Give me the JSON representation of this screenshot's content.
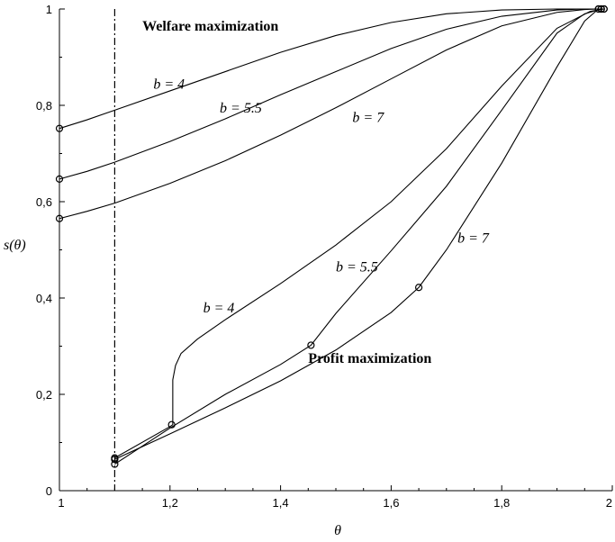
{
  "chart_data": {
    "type": "line",
    "title": "",
    "xlabel": "θ",
    "ylabel": "s(θ)",
    "xlim": [
      1,
      2
    ],
    "ylim": [
      0,
      1
    ],
    "x_ticks": [
      1,
      1.2,
      1.4,
      1.6,
      1.8,
      2
    ],
    "x_tick_labels": [
      "1",
      "1,2",
      "1,4",
      "1,6",
      "1,8",
      "2"
    ],
    "y_ticks": [
      0,
      0.2,
      0.4,
      0.6,
      0.8,
      1
    ],
    "y_tick_labels": [
      "0",
      "0,2",
      "0,4",
      "0,6",
      "0,8",
      "1"
    ],
    "grid": false,
    "vertical_line": {
      "x": 1.1,
      "style": "dash-dot"
    },
    "annotations": [
      {
        "text": "Welfare maximization",
        "x": 1.15,
        "y": 0.955,
        "style": "bold"
      },
      {
        "text": "Profit maximization",
        "x": 1.45,
        "y": 0.265,
        "style": "bold"
      },
      {
        "text": "b = 4",
        "x": 1.17,
        "y": 0.835,
        "style": "math"
      },
      {
        "text": "b = 5.5",
        "x": 1.29,
        "y": 0.785,
        "style": "math"
      },
      {
        "text": "b = 7",
        "x": 1.53,
        "y": 0.765,
        "style": "math"
      },
      {
        "text": "b = 4",
        "x": 1.26,
        "y": 0.37,
        "style": "math"
      },
      {
        "text": "b = 5.5",
        "x": 1.5,
        "y": 0.455,
        "style": "math"
      },
      {
        "text": "b = 7",
        "x": 1.72,
        "y": 0.515,
        "style": "math"
      }
    ],
    "series": [
      {
        "group": "welfare",
        "label": "b = 4",
        "x": [
          1,
          1.05,
          1.1,
          1.2,
          1.3,
          1.4,
          1.5,
          1.6,
          1.7,
          1.8,
          1.9,
          1.97,
          1.985
        ],
        "y": [
          0.752,
          0.77,
          0.79,
          0.83,
          0.87,
          0.91,
          0.945,
          0.972,
          0.99,
          0.998,
          1,
          1,
          1
        ],
        "markers": [
          [
            1,
            0.752
          ],
          [
            1.985,
            1
          ]
        ]
      },
      {
        "group": "welfare",
        "label": "b = 5.5",
        "x": [
          1,
          1.05,
          1.1,
          1.2,
          1.3,
          1.4,
          1.5,
          1.6,
          1.7,
          1.8,
          1.9,
          1.95,
          1.98
        ],
        "y": [
          0.647,
          0.663,
          0.682,
          0.725,
          0.772,
          0.822,
          0.87,
          0.918,
          0.958,
          0.985,
          0.998,
          1,
          1
        ],
        "markers": [
          [
            1,
            0.647
          ],
          [
            1.98,
            1
          ]
        ]
      },
      {
        "group": "welfare",
        "label": "b = 7",
        "x": [
          1,
          1.05,
          1.1,
          1.2,
          1.3,
          1.4,
          1.5,
          1.6,
          1.7,
          1.8,
          1.9,
          1.95,
          1.975
        ],
        "y": [
          0.565,
          0.58,
          0.597,
          0.638,
          0.685,
          0.738,
          0.795,
          0.855,
          0.915,
          0.965,
          0.993,
          0.999,
          1
        ],
        "markers": [
          [
            1,
            0.565
          ],
          [
            1.975,
            1
          ]
        ]
      },
      {
        "group": "profit",
        "label": "b = 4",
        "x": [
          1.1,
          1.2,
          1.205,
          1.205,
          1.21,
          1.22,
          1.25,
          1.3,
          1.4,
          1.5,
          1.6,
          1.7,
          1.8,
          1.9,
          1.96,
          1.985
        ],
        "y": [
          0.068,
          0.133,
          0.137,
          0.23,
          0.26,
          0.285,
          0.315,
          0.355,
          0.43,
          0.51,
          0.6,
          0.71,
          0.84,
          0.96,
          0.995,
          1
        ],
        "markers": [
          [
            1.1,
            0.068
          ],
          [
            1.203,
            0.137
          ],
          [
            1.985,
            1
          ]
        ]
      },
      {
        "group": "profit",
        "label": "b = 5.5",
        "x": [
          1.1,
          1.2,
          1.3,
          1.4,
          1.455,
          1.5,
          1.6,
          1.7,
          1.8,
          1.9,
          1.95,
          1.98
        ],
        "y": [
          0.055,
          0.13,
          0.2,
          0.262,
          0.302,
          0.368,
          0.498,
          0.632,
          0.79,
          0.95,
          0.99,
          1
        ],
        "markers": [
          [
            1.1,
            0.055
          ],
          [
            1.455,
            0.302
          ],
          [
            1.98,
            1
          ]
        ]
      },
      {
        "group": "profit",
        "label": "b = 7",
        "x": [
          1.1,
          1.2,
          1.3,
          1.4,
          1.5,
          1.6,
          1.65,
          1.7,
          1.8,
          1.9,
          1.95,
          1.975
        ],
        "y": [
          0.065,
          0.118,
          0.172,
          0.228,
          0.292,
          0.37,
          0.422,
          0.5,
          0.68,
          0.88,
          0.975,
          1
        ],
        "markers": [
          [
            1.1,
            0.065
          ],
          [
            1.65,
            0.422
          ],
          [
            1.975,
            1
          ]
        ]
      }
    ]
  }
}
